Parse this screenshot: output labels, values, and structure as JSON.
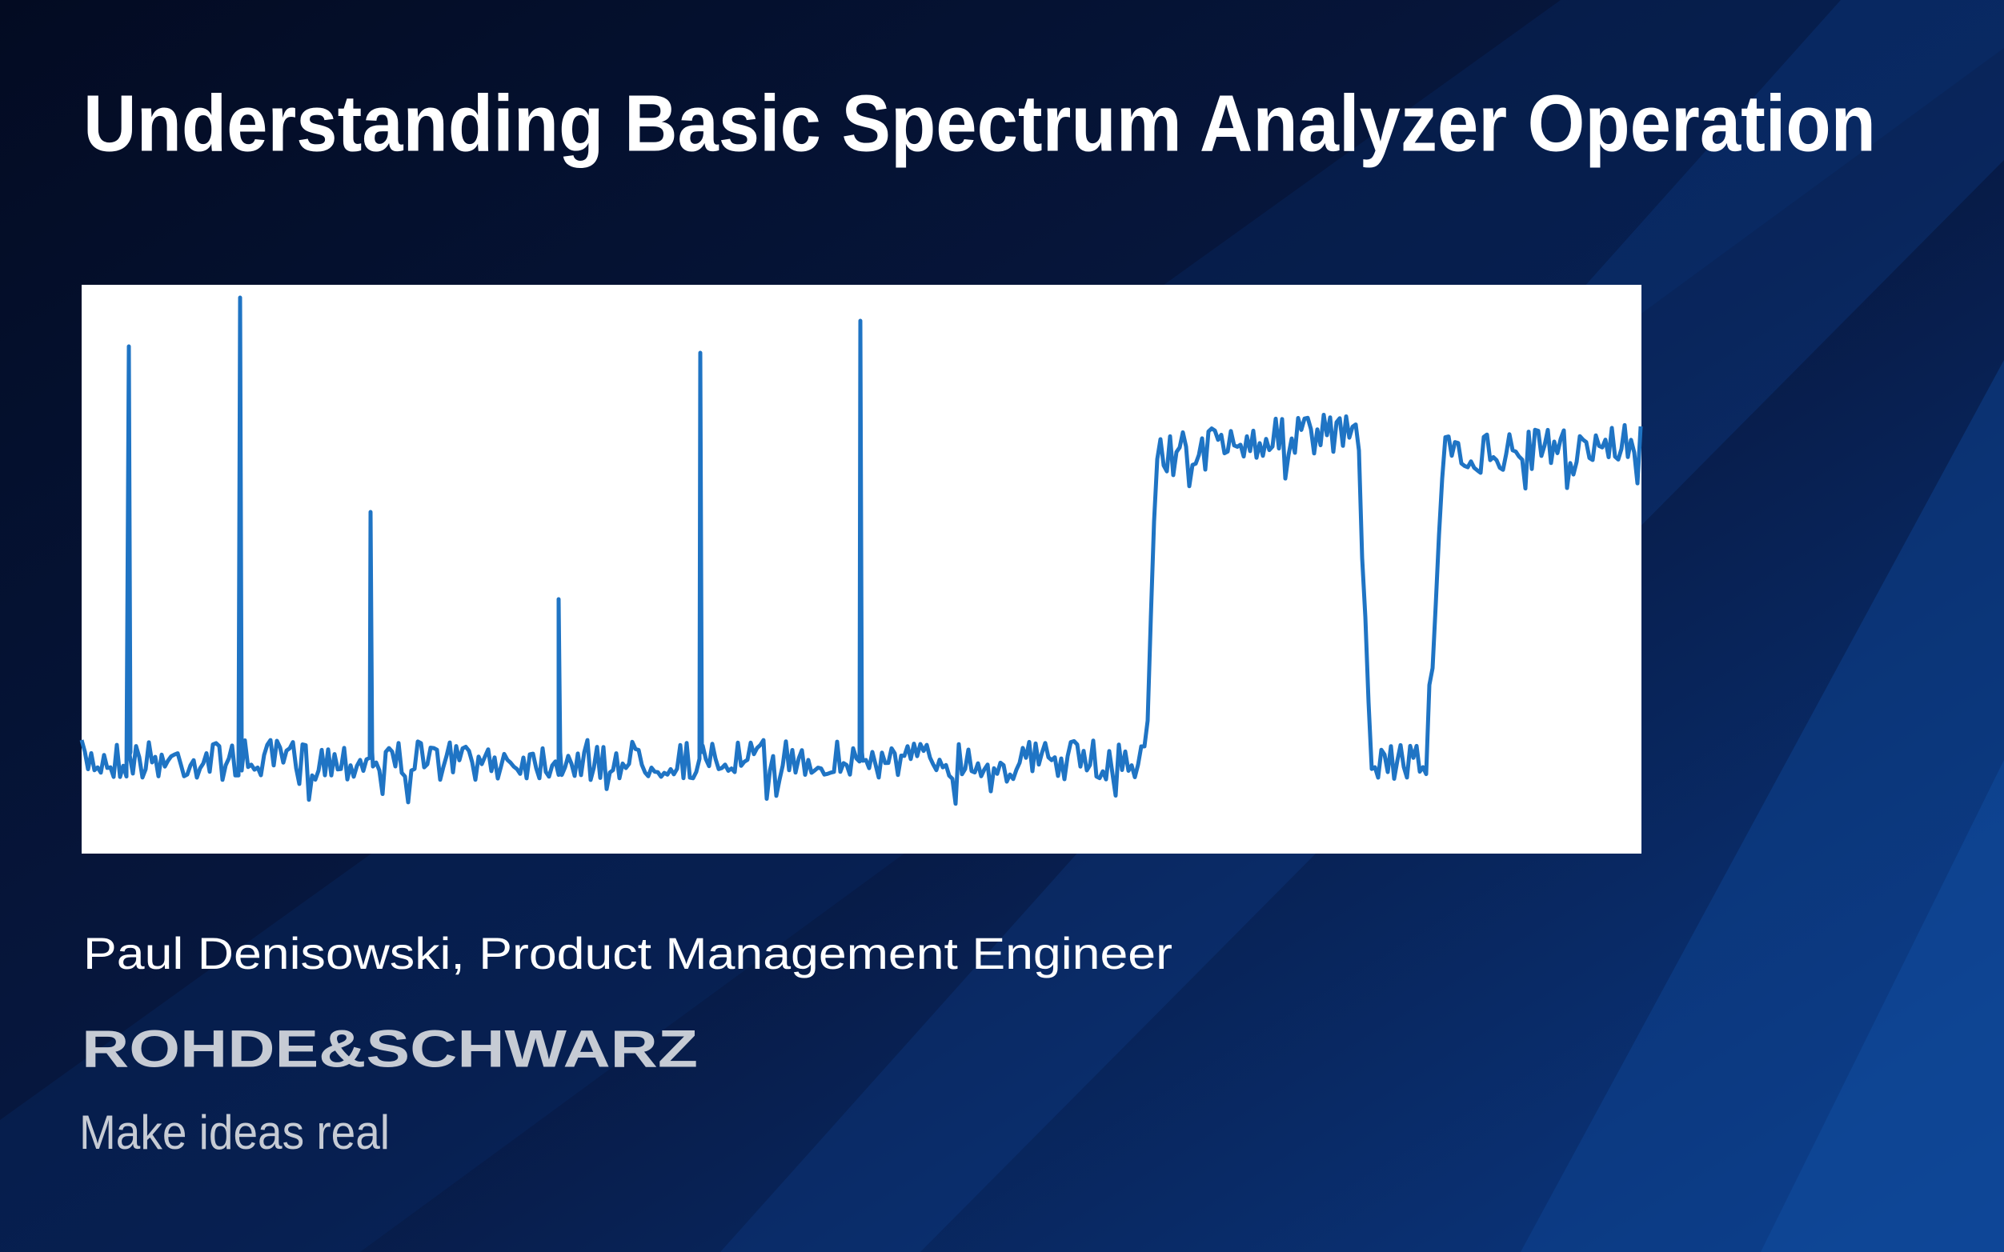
{
  "slide": {
    "title": "Understanding Basic Spectrum Analyzer Operation",
    "presenter": "Paul Denisowski, Product Management Engineer",
    "logo": "ROHDE&SCHWARZ",
    "tagline": "Make ideas real"
  }
}
